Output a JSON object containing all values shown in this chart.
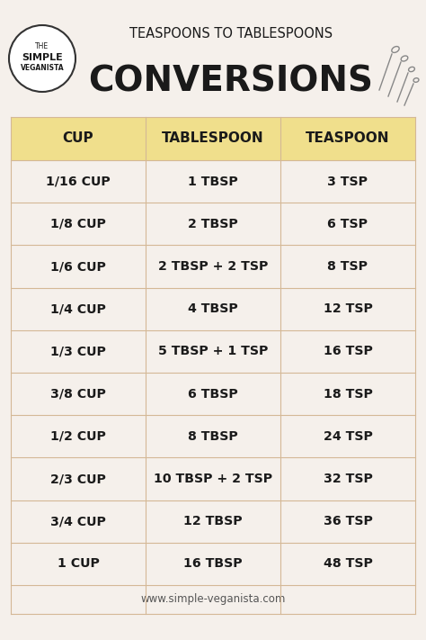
{
  "bg_color": "#f5f0eb",
  "header_bg": "#f0df8c",
  "table_bg": "#f5f0eb",
  "grid_color": "#d4b896",
  "title_line1": "TEASPOONS TO TABLESPOONS",
  "title_line2": "CONVERSIONS",
  "website": "www.simple-veganista.com",
  "col_headers": [
    "CUP",
    "TABLESPOON",
    "TEASPOON"
  ],
  "rows": [
    [
      "1/16 CUP",
      "1 TBSP",
      "3 TSP"
    ],
    [
      "1/8 CUP",
      "2 TBSP",
      "6 TSP"
    ],
    [
      "1/6 CUP",
      "2 TBSP + 2 TSP",
      "8 TSP"
    ],
    [
      "1/4 CUP",
      "4 TBSP",
      "12 TSP"
    ],
    [
      "1/3 CUP",
      "5 TBSP + 1 TSP",
      "16 TSP"
    ],
    [
      "3/8 CUP",
      "6 TBSP",
      "18 TSP"
    ],
    [
      "1/2 CUP",
      "8 TBSP",
      "24 TSP"
    ],
    [
      "2/3 CUP",
      "10 TBSP + 2 TSP",
      "32 TSP"
    ],
    [
      "3/4 CUP",
      "12 TBSP",
      "36 TSP"
    ],
    [
      "1 CUP",
      "16 TBSP",
      "48 TSP"
    ]
  ],
  "title1_fontsize": 10.5,
  "title2_fontsize": 28,
  "header_fontsize": 11,
  "cell_fontsize": 10.2,
  "website_fontsize": 8.5,
  "logo_text": [
    "THE",
    "SIMPLE",
    "VEGANISTA"
  ],
  "text_color": "#1a1a1a",
  "website_color": "#555555"
}
